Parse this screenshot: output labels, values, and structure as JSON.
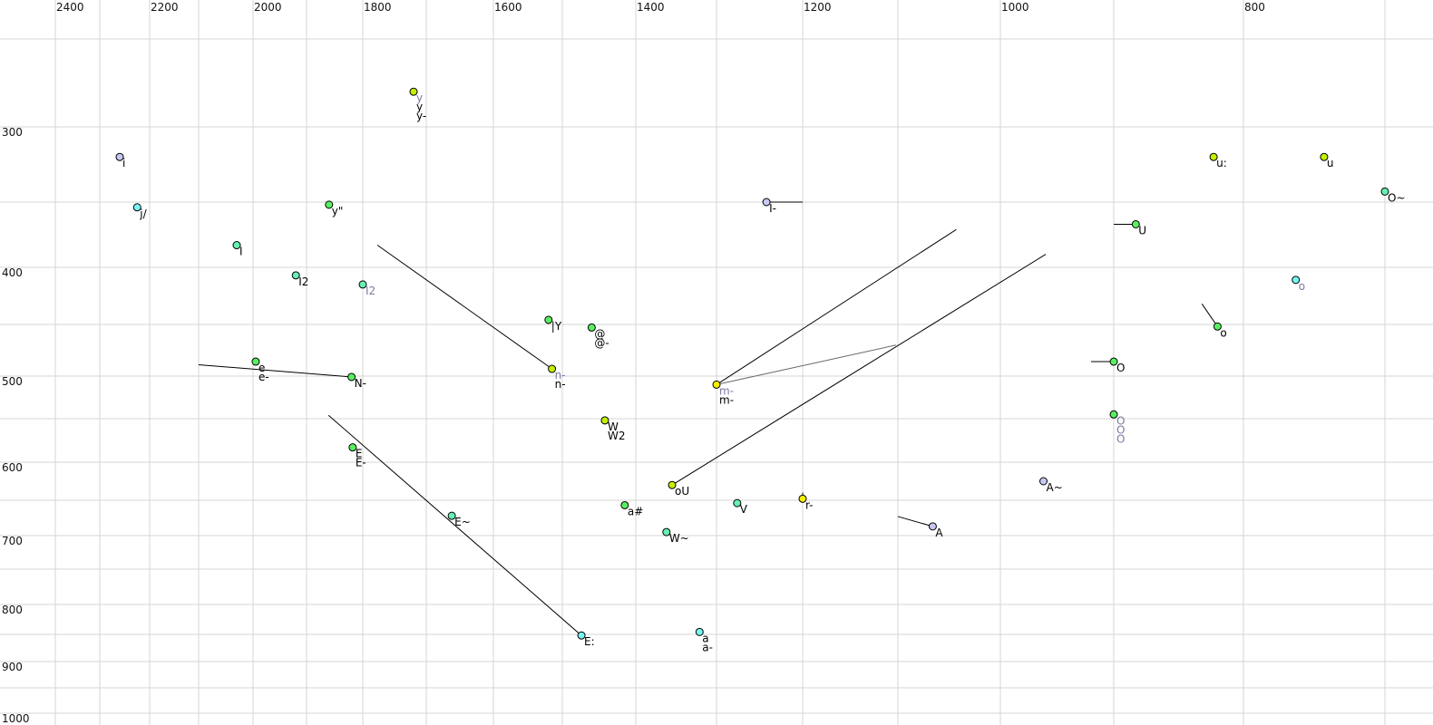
{
  "chart_data": {
    "type": "scatter",
    "title": "",
    "xlabel": "",
    "ylabel": "",
    "x_axis": {
      "reversed": true,
      "position": "top",
      "ticks": [
        2400,
        2200,
        2000,
        1800,
        1600,
        1400,
        1200,
        1000,
        800
      ],
      "grid_step": 100,
      "range": [
        2400,
        700
      ]
    },
    "y_axis": {
      "reversed": false,
      "position": "left",
      "ticks": [
        300,
        400,
        500,
        600,
        700,
        800,
        900,
        1000
      ],
      "grid_step": 50,
      "range": [
        250,
        1000
      ]
    },
    "grid": true,
    "label_gray": "#7a7aa0",
    "colors": {
      "lavender": "#c8c8f4",
      "cyan": "#78f4f4",
      "teal": "#66f0b4",
      "green": "#58f060",
      "lime": "#c4f000",
      "yellow": "#f4f000"
    },
    "points": [
      {
        "f2": 1720,
        "f1": 280,
        "color": "lime",
        "labels": [
          {
            "text": "y",
            "gray": true
          },
          {
            "text": "y"
          },
          {
            "text": "y-"
          }
        ]
      },
      {
        "f2": 2260,
        "f1": 320,
        "color": "lavender",
        "labels": [
          {
            "text": "i"
          }
        ]
      },
      {
        "f2": 2225,
        "f1": 354,
        "color": "cyan",
        "labels": [
          {
            "text": "j/"
          }
        ]
      },
      {
        "f2": 1860,
        "f1": 352,
        "color": "green",
        "labels": [
          {
            "text": "y\""
          }
        ]
      },
      {
        "f2": 2030,
        "f1": 383,
        "color": "teal",
        "labels": [
          {
            "text": "I"
          }
        ]
      },
      {
        "f2": 1920,
        "f1": 407,
        "color": "teal",
        "labels": [
          {
            "text": "I2"
          }
        ]
      },
      {
        "f2": 1800,
        "f1": 415,
        "color": "teal",
        "labels": [
          {
            "text": "I2",
            "gray": true
          }
        ]
      },
      {
        "f2": 1520,
        "f1": 446,
        "color": "green",
        "labels": [
          {
            "text": "|Y"
          }
        ]
      },
      {
        "f2": 1460,
        "f1": 453,
        "color": "green",
        "labels": [
          {
            "text": "@"
          },
          {
            "text": "@-"
          }
        ]
      },
      {
        "f2": 1515,
        "f1": 493,
        "color": "lime",
        "labels": [
          {
            "text": "n-",
            "gray": true
          },
          {
            "text": "n-"
          }
        ],
        "trail": [
          1777,
          383
        ]
      },
      {
        "f2": 1995,
        "f1": 486,
        "color": "green",
        "labels": [
          {
            "text": "e"
          },
          {
            "text": "e-"
          }
        ]
      },
      {
        "f2": 1820,
        "f1": 501,
        "color": "green",
        "labels": [
          {
            "text": "N-"
          }
        ],
        "trail": [
          2100,
          489
        ]
      },
      {
        "f2": 1818,
        "f1": 583,
        "color": "green",
        "labels": [
          {
            "text": "E"
          },
          {
            "text": "E-"
          }
        ]
      },
      {
        "f2": 1662,
        "f1": 672,
        "color": "teal",
        "labels": [
          {
            "text": "E~"
          }
        ]
      },
      {
        "f2": 1474,
        "f1": 852,
        "color": "cyan",
        "labels": [
          {
            "text": "E:"
          }
        ],
        "trail": [
          1861,
          546
        ]
      },
      {
        "f2": 1442,
        "f1": 552,
        "color": "lime",
        "labels": [
          {
            "text": "W"
          },
          {
            "text": "W2"
          }
        ]
      },
      {
        "f2": 1355,
        "f1": 630,
        "color": "lime",
        "labels": [
          {
            "text": "oU"
          }
        ],
        "trail": [
          960,
          390
        ]
      },
      {
        "f2": 1300,
        "f1": 510,
        "color": "yellow",
        "labels": [
          {
            "text": "m-",
            "gray": true
          },
          {
            "text": "m-"
          }
        ],
        "trail": [
          1043,
          371
        ],
        "trail2": [
          1102,
          470
        ]
      },
      {
        "f2": 1242,
        "f1": 350,
        "color": "lavender",
        "labels": [
          {
            "text": "I-"
          }
        ],
        "trail": [
          1200,
          350
        ]
      },
      {
        "f2": 1415,
        "f1": 657,
        "color": "green",
        "labels": [
          {
            "text": "a#"
          }
        ]
      },
      {
        "f2": 1362,
        "f1": 695,
        "color": "teal",
        "labels": [
          {
            "text": "W~"
          }
        ]
      },
      {
        "f2": 1276,
        "f1": 654,
        "color": "teal",
        "labels": [
          {
            "text": "V"
          }
        ]
      },
      {
        "f2": 1200,
        "f1": 648,
        "color": "yellow",
        "labels": [
          {
            "text": "r-"
          }
        ],
        "trail": [
          1200,
          640
        ]
      },
      {
        "f2": 1321,
        "f1": 846,
        "color": "cyan",
        "labels": [
          {
            "text": "a"
          },
          {
            "text": "a-"
          }
        ]
      },
      {
        "f2": 1066,
        "f1": 687,
        "color": "lavender",
        "labels": [
          {
            "text": "A"
          }
        ],
        "trail": [
          1100,
          673
        ]
      },
      {
        "f2": 962,
        "f1": 625,
        "color": "lavender",
        "labels": [
          {
            "text": "A~"
          }
        ]
      },
      {
        "f2": 883,
        "f1": 367,
        "color": "green",
        "labels": [
          {
            "text": "U"
          }
        ],
        "trail": [
          900,
          367
        ]
      },
      {
        "f2": 900,
        "f1": 486,
        "color": "green",
        "labels": [
          {
            "text": "O"
          }
        ],
        "trail": [
          920,
          486
        ]
      },
      {
        "f2": 900,
        "f1": 545,
        "color": "green",
        "labels": [
          {
            "text": "O",
            "gray": true
          },
          {
            "text": "O",
            "gray": true
          },
          {
            "text": "O",
            "gray": true
          }
        ]
      },
      {
        "f2": 823,
        "f1": 320,
        "color": "lime",
        "labels": [
          {
            "text": "u:"
          }
        ]
      },
      {
        "f2": 743,
        "f1": 320,
        "color": "lime",
        "labels": [
          {
            "text": "u"
          }
        ]
      },
      {
        "f2": 700,
        "f1": 343,
        "color": "teal",
        "labels": [
          {
            "text": "O~"
          }
        ]
      },
      {
        "f2": 763,
        "f1": 411,
        "color": "cyan",
        "labels": [
          {
            "text": "o",
            "gray": true
          }
        ]
      },
      {
        "f2": 820,
        "f1": 452,
        "color": "green",
        "labels": [
          {
            "text": "o"
          }
        ],
        "trail": [
          832,
          432
        ]
      }
    ]
  }
}
